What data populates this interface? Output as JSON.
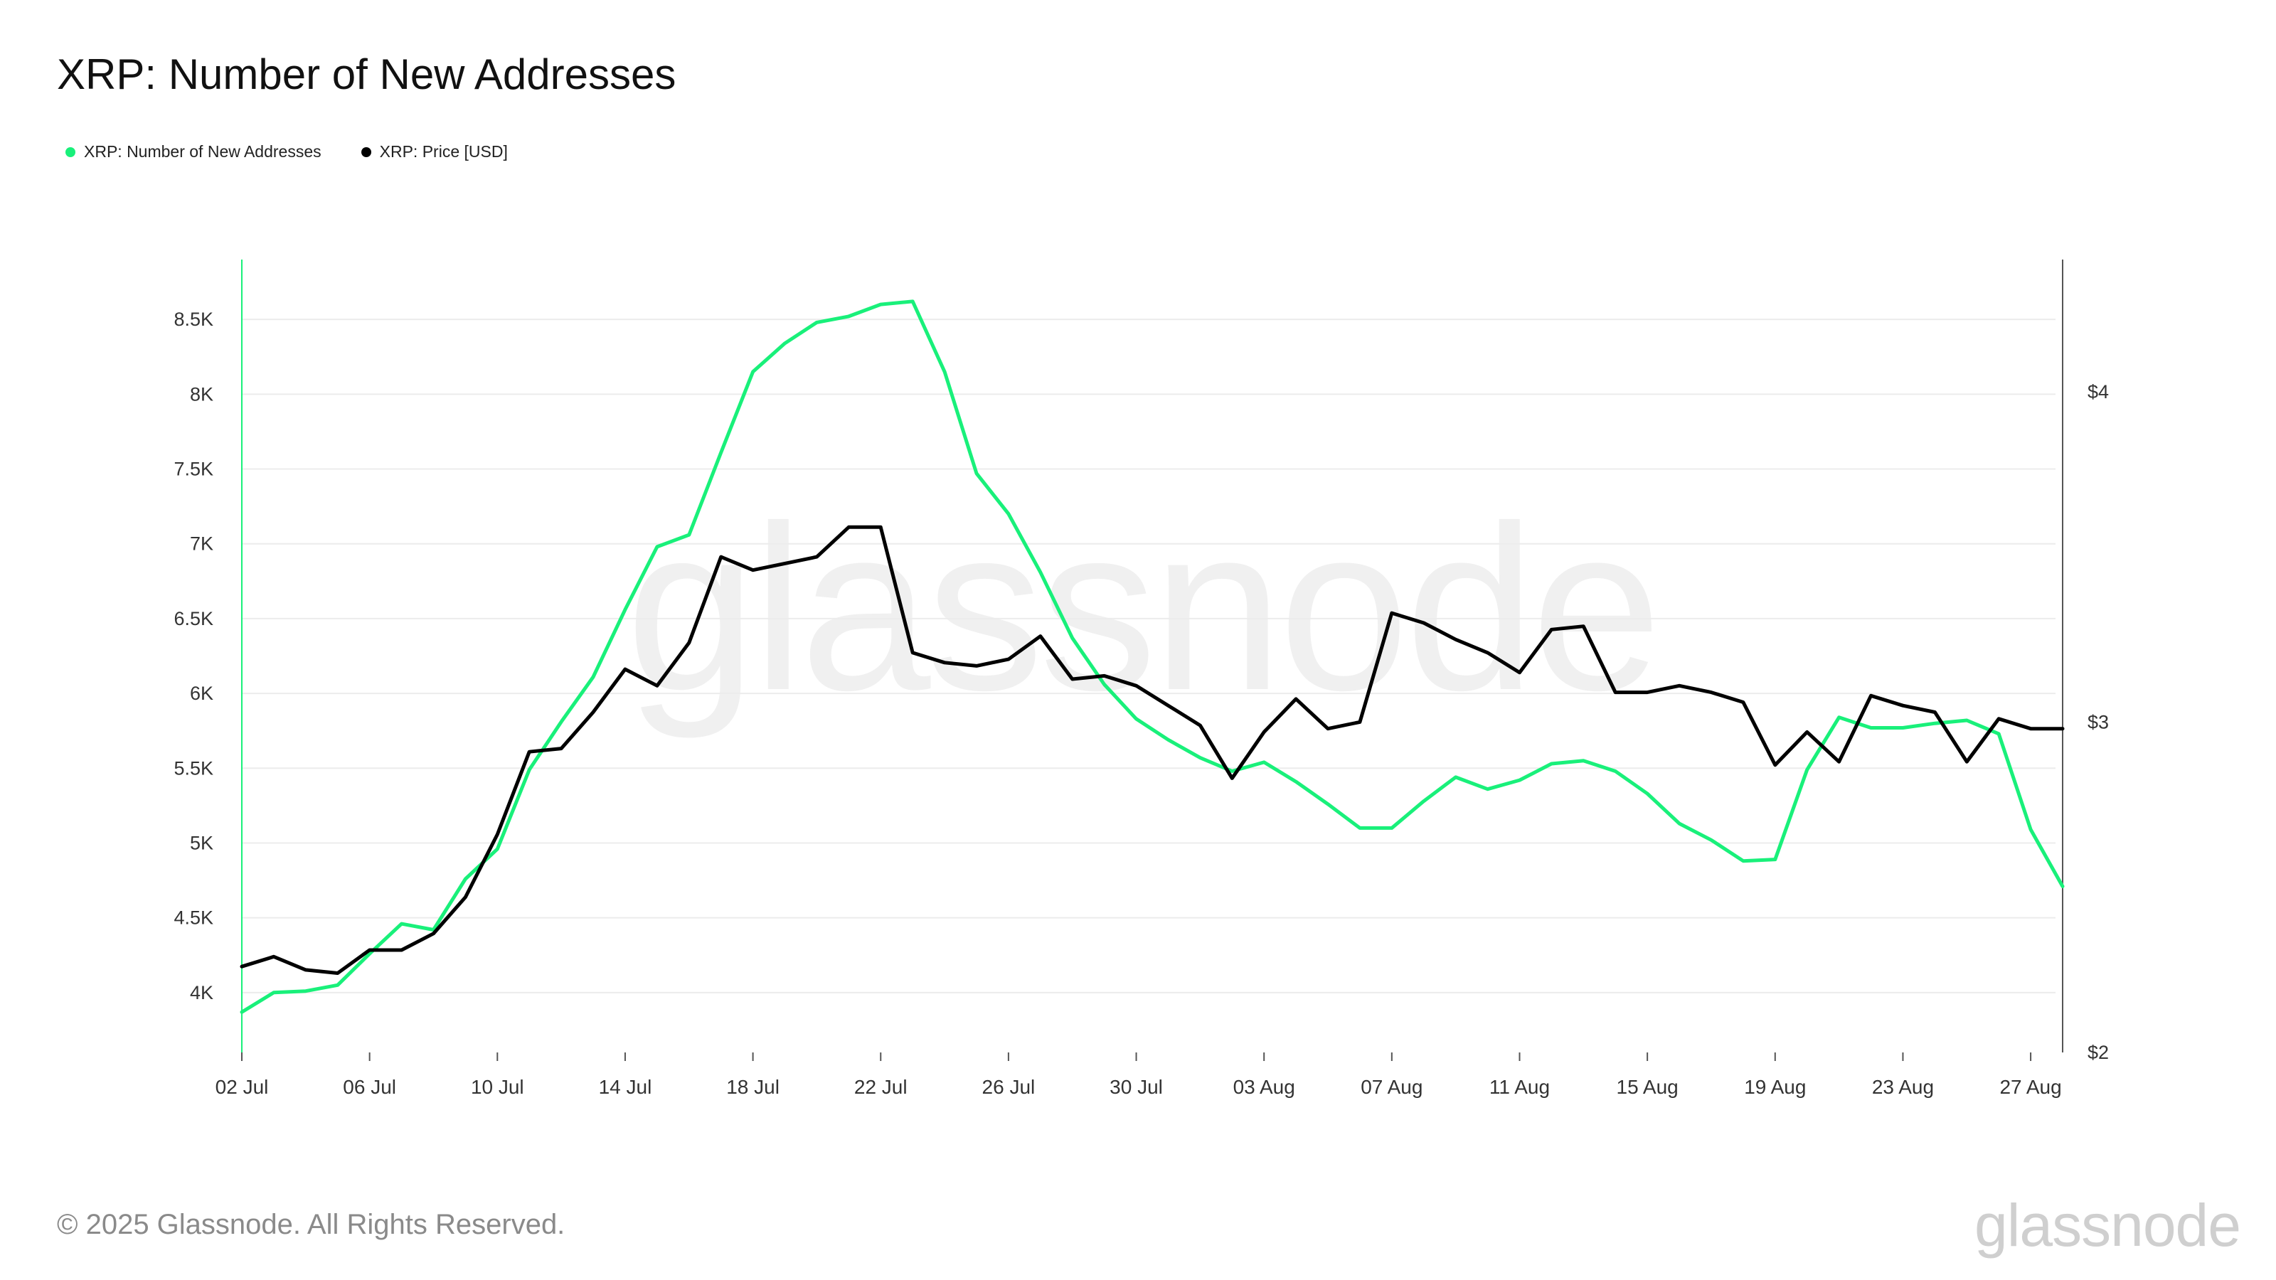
{
  "title": "XRP: Number of New Addresses",
  "legend": [
    {
      "label": "XRP: Number of New Addresses",
      "color": "#19f07a"
    },
    {
      "label": "XRP: Price [USD]",
      "color": "#000000"
    }
  ],
  "watermark": "glassnode",
  "footer": {
    "copyright": "© 2025 Glassnode. All Rights Reserved.",
    "logo": "glassnode"
  },
  "chart_data": {
    "type": "line",
    "x": [
      "02 Jul",
      "03 Jul",
      "04 Jul",
      "05 Jul",
      "06 Jul",
      "07 Jul",
      "08 Jul",
      "09 Jul",
      "10 Jul",
      "11 Jul",
      "12 Jul",
      "13 Jul",
      "14 Jul",
      "15 Jul",
      "16 Jul",
      "17 Jul",
      "18 Jul",
      "19 Jul",
      "20 Jul",
      "21 Jul",
      "22 Jul",
      "23 Jul",
      "24 Jul",
      "25 Jul",
      "26 Jul",
      "27 Jul",
      "28 Jul",
      "29 Jul",
      "30 Jul",
      "31 Jul",
      "01 Aug",
      "02 Aug",
      "03 Aug",
      "04 Aug",
      "05 Aug",
      "06 Aug",
      "07 Aug",
      "08 Aug",
      "09 Aug",
      "10 Aug",
      "11 Aug",
      "12 Aug",
      "13 Aug",
      "14 Aug",
      "15 Aug",
      "16 Aug",
      "17 Aug",
      "18 Aug",
      "19 Aug",
      "20 Aug",
      "21 Aug",
      "22 Aug",
      "23 Aug",
      "24 Aug",
      "25 Aug",
      "26 Aug",
      "27 Aug",
      "28 Aug"
    ],
    "xticks": [
      "02 Jul",
      "06 Jul",
      "10 Jul",
      "14 Jul",
      "18 Jul",
      "22 Jul",
      "26 Jul",
      "30 Jul",
      "03 Aug",
      "07 Aug",
      "11 Aug",
      "15 Aug",
      "19 Aug",
      "23 Aug",
      "27 Aug"
    ],
    "series": [
      {
        "name": "XRP: Number of New Addresses",
        "axis": "left",
        "color": "#19f07a",
        "values": [
          3870,
          4000,
          4010,
          4050,
          4260,
          4460,
          4420,
          4760,
          4960,
          5490,
          5810,
          6110,
          6560,
          6980,
          7060,
          7610,
          8150,
          8340,
          8480,
          8520,
          8600,
          8620,
          8150,
          7470,
          7200,
          6810,
          6370,
          6060,
          5830,
          5690,
          5570,
          5480,
          5540,
          5410,
          5260,
          5100,
          5100,
          5280,
          5440,
          5360,
          5420,
          5530,
          5550,
          5480,
          5330,
          5130,
          5020,
          4880,
          4890,
          5490,
          5840,
          5770,
          5770,
          5800,
          5820,
          5730,
          5090,
          4710
        ]
      },
      {
        "name": "XRP: Price [USD]",
        "axis": "right",
        "color": "#000000",
        "values": [
          2.26,
          2.29,
          2.25,
          2.24,
          2.31,
          2.31,
          2.36,
          2.47,
          2.66,
          2.91,
          2.92,
          3.03,
          3.16,
          3.11,
          3.24,
          3.5,
          3.46,
          3.48,
          3.5,
          3.59,
          3.59,
          3.21,
          3.18,
          3.17,
          3.19,
          3.26,
          3.13,
          3.14,
          3.11,
          3.05,
          2.99,
          2.83,
          2.97,
          3.07,
          2.98,
          3.0,
          3.33,
          3.3,
          3.25,
          3.21,
          3.15,
          3.28,
          3.29,
          3.09,
          3.09,
          3.11,
          3.09,
          3.06,
          2.87,
          2.97,
          2.88,
          3.08,
          3.05,
          3.03,
          2.88,
          3.01,
          2.98,
          2.98
        ]
      }
    ],
    "yleft": {
      "ticks": [
        4000,
        4500,
        5000,
        5500,
        6000,
        6500,
        7000,
        7500,
        8000,
        8500
      ],
      "ticklabels": [
        "4K",
        "4.5K",
        "5K",
        "5.5K",
        "6K",
        "6.5K",
        "7K",
        "7.5K",
        "8K",
        "8.5K"
      ],
      "ylim": [
        3600,
        8900
      ]
    },
    "yright": {
      "ticks": [
        2,
        3,
        4
      ],
      "ticklabels": [
        "$2",
        "$3",
        "$4"
      ],
      "ylim": [
        2,
        4.4
      ]
    },
    "grid": true
  }
}
